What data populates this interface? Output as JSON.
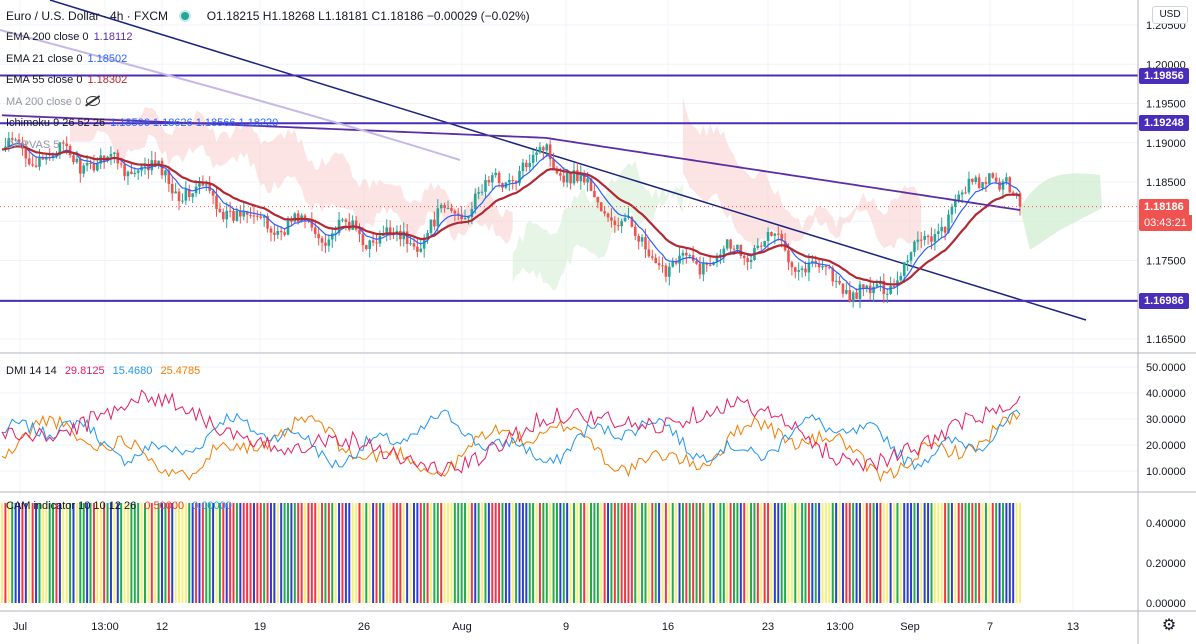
{
  "symbol": {
    "title": "Euro / U.S. Dollar · 4h · FXCM",
    "ohlc": "O1.18215 H1.18268 L1.18181 C1.18186 −0.00029 (−0.02%)"
  },
  "legends": [
    {
      "label": "EMA 200 close 0",
      "value": "1.18112",
      "color": "#5b2ea6",
      "faded": false
    },
    {
      "label": "EMA 21 close 0",
      "value": "1.18502",
      "color": "#2962ff",
      "faded": false
    },
    {
      "label": "EMA 55 close 0",
      "value": "1.18302",
      "color": "#b22833",
      "faded": false
    },
    {
      "label": "MA 200 close 0",
      "value": "",
      "color": "#9598a1",
      "faded": true
    },
    {
      "label": "Ichimoku 9 26 52 26",
      "value": "1.18506  1.18626  1.18566  1.18220",
      "color": "#2962ff",
      "faded": false
    },
    {
      "label": "DARVAS 5",
      "value": "",
      "color": "#9598a1",
      "faded": true
    }
  ],
  "currency_button": "USD",
  "price_axis": {
    "labels": [
      "1.20500",
      "1.20000",
      "1.19500",
      "1.19000",
      "1.18500",
      "1.18000",
      "1.17500",
      "1.17000",
      "1.16500"
    ],
    "last_price": "1.18186",
    "countdown": "03:43:21",
    "last_color": "#ef5350"
  },
  "horizontal_levels": [
    {
      "value": 1.19856,
      "label": "1.19856",
      "color": "#4a2db8"
    },
    {
      "value": 1.19248,
      "label": "1.19248",
      "color": "#4a2db8"
    },
    {
      "value": 1.16986,
      "label": "1.16986",
      "color": "#4a2db8"
    }
  ],
  "dmi": {
    "legend_label": "DMI 14 14",
    "plus_di": "29.8125",
    "minus_di": "15.4680",
    "adx": "25.4785",
    "colors": {
      "plus": "#e91e63",
      "minus": "#2196f3",
      "adx": "#f57c00"
    },
    "axis_labels": [
      "50.0000",
      "40.0000",
      "30.0000",
      "20.0000",
      "10.0000"
    ]
  },
  "cam": {
    "legend_label": "CAM indicator 10 10 12 26",
    "v1": "0.50000",
    "v2": "0.00000",
    "axis_labels": [
      "0.40000",
      "0.20000",
      "0.00000"
    ],
    "colors": {
      "red": "#f23645",
      "green": "#22ab4a",
      "blue": "#2b3ecf",
      "yellow": "#f5f07a"
    }
  },
  "time_axis": {
    "labels": [
      "Jul",
      "13:00",
      "12",
      "19",
      "26",
      "Aug",
      "9",
      "16",
      "23",
      "13:00",
      "Sep",
      "7",
      "13"
    ]
  },
  "chart_data": {
    "type": "line",
    "title": "Euro / U.S. Dollar · 4h · FXCM",
    "x": [
      "Jul",
      "12",
      "19",
      "26",
      "Aug",
      "9",
      "16",
      "23",
      "Sep",
      "7",
      "13"
    ],
    "series_price_anchors": [
      1.189,
      1.187,
      1.18,
      1.1775,
      1.189,
      1.174,
      1.1775,
      1.17,
      1.1865,
      1.1818
    ],
    "ylim": [
      1.163,
      1.207
    ],
    "dmi_ylim": [
      0,
      52
    ],
    "cam_ylim": [
      0,
      0.52
    ]
  }
}
